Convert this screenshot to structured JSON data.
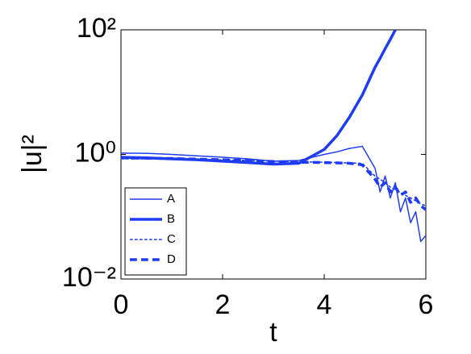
{
  "chart_data": {
    "type": "line",
    "x_label": "t",
    "y_label": "|u|²",
    "y_scale": "log",
    "xlim": [
      0,
      6
    ],
    "ylim": [
      0.01,
      100
    ],
    "xticks": [
      0,
      2,
      4,
      6
    ],
    "yticks": [
      {
        "value": 0.01,
        "label": "10⁻²"
      },
      {
        "value": 1,
        "label": "10⁰"
      },
      {
        "value": 100,
        "label": "10²"
      }
    ],
    "grid": false,
    "legend": "lower left",
    "x": [
      0,
      0.5,
      1,
      1.5,
      2,
      2.5,
      3,
      3.5,
      4,
      4.25,
      4.5,
      4.75,
      5,
      5.1,
      5.2,
      5.3,
      5.4,
      5.5,
      5.6,
      5.7,
      5.8,
      5.9,
      6
    ],
    "series": [
      {
        "name": "A",
        "color": "#1f3cf5",
        "linestyle": "solid",
        "linewidth": 1.5,
        "values": [
          1.05,
          1.04,
          1.0,
          0.95,
          0.9,
          0.85,
          0.78,
          0.8,
          1.0,
          1.1,
          1.25,
          1.35,
          0.6,
          0.25,
          0.45,
          0.2,
          0.35,
          0.12,
          0.2,
          0.08,
          0.12,
          0.04,
          0.05
        ]
      },
      {
        "name": "B",
        "color": "#1f3cf5",
        "linestyle": "solid",
        "linewidth": 3.5,
        "values": [
          0.9,
          0.88,
          0.85,
          0.82,
          0.78,
          0.74,
          0.7,
          0.72,
          1.2,
          2,
          4,
          9,
          25,
          35,
          50,
          70,
          100,
          null,
          null,
          null,
          null,
          null,
          null
        ]
      },
      {
        "name": "C",
        "color": "#1f3cf5",
        "linestyle": "dashed",
        "linewidth": 1.5,
        "values": [
          0.85,
          0.85,
          0.84,
          0.83,
          0.82,
          0.8,
          0.78,
          0.76,
          0.75,
          0.74,
          0.73,
          0.72,
          0.45,
          0.4,
          0.35,
          0.3,
          0.27,
          0.24,
          0.22,
          0.2,
          0.18,
          0.16,
          0.15
        ]
      },
      {
        "name": "D",
        "color": "#1f3cf5",
        "linestyle": "dashed",
        "linewidth": 3.5,
        "values": [
          0.88,
          0.87,
          0.86,
          0.84,
          0.82,
          0.8,
          0.77,
          0.75,
          0.74,
          0.73,
          0.72,
          0.68,
          0.4,
          0.3,
          0.35,
          0.25,
          0.3,
          0.22,
          0.25,
          0.17,
          0.2,
          0.15,
          0.13
        ]
      }
    ]
  }
}
